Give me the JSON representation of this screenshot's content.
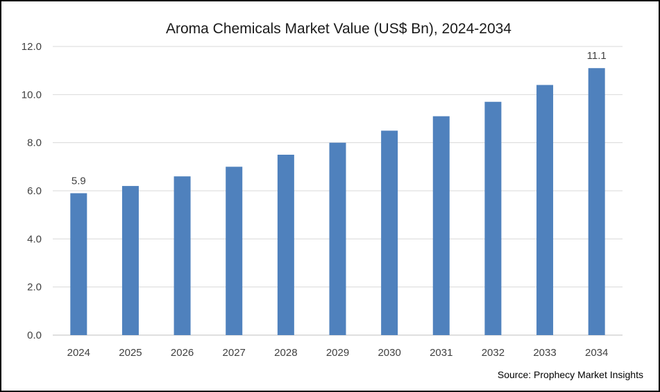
{
  "chart_data": {
    "type": "bar",
    "title": "Aroma Chemicals Market Value (US$ Bn), 2024-2034",
    "categories": [
      "2024",
      "2025",
      "2026",
      "2027",
      "2028",
      "2029",
      "2030",
      "2031",
      "2032",
      "2033",
      "2034"
    ],
    "values": [
      5.9,
      6.2,
      6.6,
      7.0,
      7.5,
      8.0,
      8.5,
      9.1,
      9.7,
      10.4,
      11.1
    ],
    "data_labels": [
      {
        "category": "2024",
        "text": "5.9"
      },
      {
        "category": "2034",
        "text": "11.1"
      }
    ],
    "y_ticks": [
      "0.0",
      "2.0",
      "4.0",
      "6.0",
      "8.0",
      "10.0",
      "12.0"
    ],
    "ylim": [
      0,
      12
    ],
    "grid": true,
    "legend": "none",
    "bar_color": "#4f81bd",
    "xlabel": "",
    "ylabel": ""
  },
  "source_note": "Source: Prophecy Market Insights"
}
